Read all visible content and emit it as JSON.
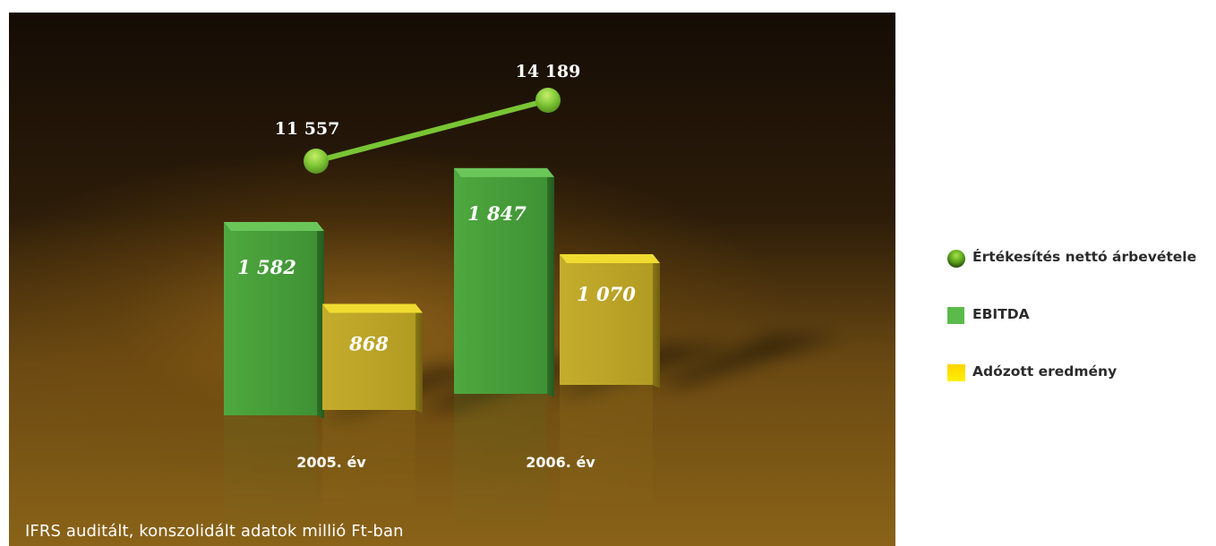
{
  "chart_data": {
    "type": "bar",
    "title": "",
    "categories": [
      "2005. év",
      "2006. év"
    ],
    "series": [
      {
        "name": "Értékesítés nettó árbevétele",
        "mark": "line",
        "values": [
          11557,
          14189
        ],
        "labels": [
          "11 557",
          "14 189"
        ],
        "color": "#7fcc35"
      },
      {
        "name": "EBITDA",
        "mark": "bar",
        "values": [
          1582,
          1847
        ],
        "labels": [
          "1 582",
          "1 847"
        ],
        "color": "#3f9a38"
      },
      {
        "name": "Adózott eredmény",
        "mark": "bar",
        "values": [
          868,
          1070
        ],
        "labels": [
          "868",
          "1 070"
        ],
        "color": "#c9b52c"
      }
    ],
    "footnote": "IFRS auditált, konszolidált adatok millió Ft-ban",
    "legend_position": "right"
  },
  "legend": [
    {
      "label": "Értékesítés nettó árbevétele",
      "icon": "green-ball-icon"
    },
    {
      "label": "EBITDA",
      "icon": "green-square-icon"
    },
    {
      "label": "Adózott eredmény",
      "icon": "yellow-square-icon"
    }
  ]
}
